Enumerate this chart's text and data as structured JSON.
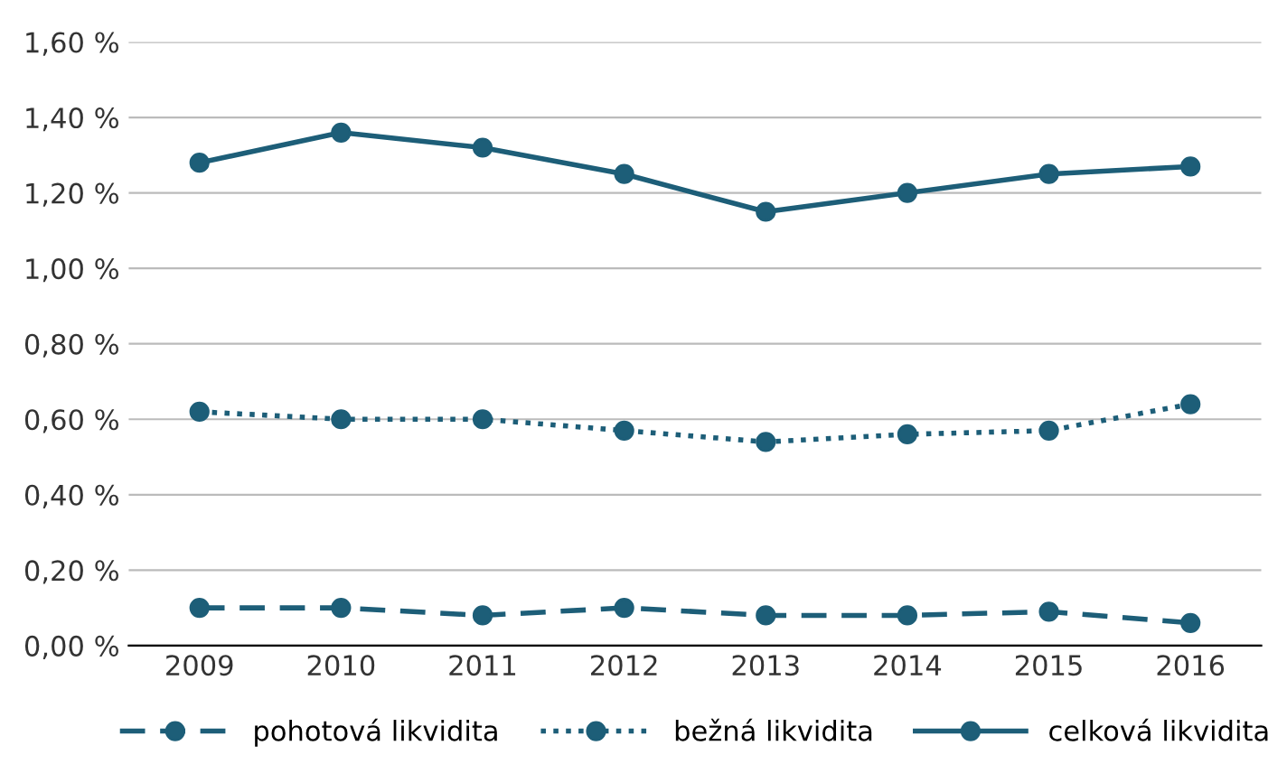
{
  "chart_data": {
    "type": "line",
    "categories": [
      "2009",
      "2010",
      "2011",
      "2012",
      "2013",
      "2014",
      "2015",
      "2016"
    ],
    "series": [
      {
        "name": "pohotová likvidita",
        "color": "#1d5e78",
        "line_style": "dashed",
        "values": [
          0.1,
          0.1,
          0.08,
          0.1,
          0.08,
          0.08,
          0.09,
          0.06
        ]
      },
      {
        "name": "bežná likvidita",
        "color": "#1d5e78",
        "line_style": "dotted",
        "values": [
          0.62,
          0.6,
          0.6,
          0.57,
          0.54,
          0.56,
          0.57,
          0.64
        ]
      },
      {
        "name": "celková likvidita",
        "color": "#1d5e78",
        "line_style": "solid",
        "values": [
          1.28,
          1.36,
          1.32,
          1.25,
          1.15,
          1.2,
          1.25,
          1.27
        ]
      }
    ],
    "ylim": [
      0,
      1.6
    ],
    "yticks": [
      {
        "value": 0,
        "label": "0,00 %"
      },
      {
        "value": 0.2,
        "label": "0,20 %"
      },
      {
        "value": 0.4,
        "label": "0,40 %"
      },
      {
        "value": 0.6,
        "label": "0,60 %"
      },
      {
        "value": 0.8,
        "label": "0,80 %"
      },
      {
        "value": 1.0,
        "label": "1,00 %"
      },
      {
        "value": 1.2,
        "label": "1,20 %"
      },
      {
        "value": 1.4,
        "label": "1,40 %"
      },
      {
        "value": 1.6,
        "label": "1,60 %"
      }
    ],
    "grid": "y",
    "legend": "bottom",
    "marker": "circle"
  }
}
